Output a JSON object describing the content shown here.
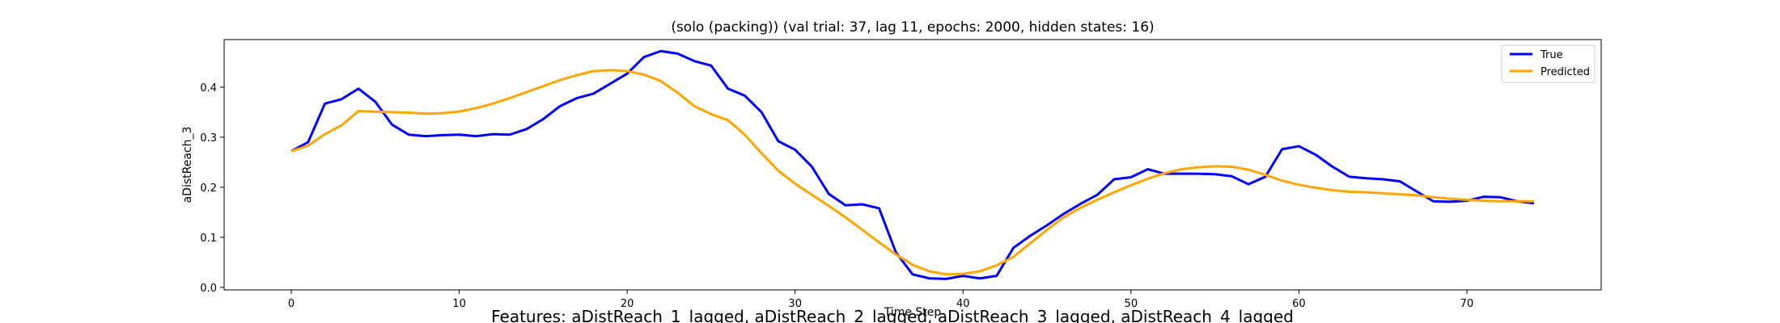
{
  "chart_data": {
    "type": "line",
    "title": "(solo (packing)) (val trial: 37, lag 11, epochs: 2000, hidden states: 16)",
    "xlabel": "Time Step",
    "ylabel": "aDistReach_3",
    "footer": "Features: aDistReach_1_lagged, aDistReach_2_lagged, aDistReach_3_lagged, aDistReach_4_lagged",
    "xlim": [
      -4,
      78
    ],
    "ylim": [
      -0.005,
      0.495
    ],
    "xticks": [
      0,
      10,
      20,
      30,
      40,
      50,
      60,
      70
    ],
    "yticks": [
      0.0,
      0.1,
      0.2,
      0.3,
      0.4
    ],
    "ytick_labels": [
      "0.0",
      "0.1",
      "0.2",
      "0.3",
      "0.4"
    ],
    "legend_position": "top-right",
    "series": [
      {
        "name": "True",
        "color": "#0000ff",
        "values": [
          0.272,
          0.29,
          0.367,
          0.376,
          0.397,
          0.371,
          0.325,
          0.305,
          0.302,
          0.304,
          0.305,
          0.302,
          0.306,
          0.305,
          0.316,
          0.336,
          0.362,
          0.378,
          0.387,
          0.407,
          0.427,
          0.46,
          0.472,
          0.467,
          0.452,
          0.443,
          0.397,
          0.383,
          0.35,
          0.292,
          0.275,
          0.241,
          0.187,
          0.164,
          0.166,
          0.158,
          0.07,
          0.026,
          0.018,
          0.017,
          0.023,
          0.018,
          0.023,
          0.079,
          0.103,
          0.124,
          0.147,
          0.167,
          0.185,
          0.216,
          0.22,
          0.236,
          0.227,
          0.227,
          0.227,
          0.226,
          0.222,
          0.206,
          0.221,
          0.276,
          0.282,
          0.265,
          0.241,
          0.221,
          0.218,
          0.216,
          0.212,
          0.192,
          0.172,
          0.171,
          0.173,
          0.181,
          0.18,
          0.172,
          0.168
        ]
      },
      {
        "name": "Predicted",
        "color": "#ffa500",
        "values": [
          0.272,
          0.283,
          0.306,
          0.324,
          0.352,
          0.351,
          0.35,
          0.349,
          0.347,
          0.348,
          0.351,
          0.358,
          0.367,
          0.378,
          0.39,
          0.402,
          0.414,
          0.424,
          0.432,
          0.434,
          0.432,
          0.425,
          0.412,
          0.389,
          0.362,
          0.346,
          0.334,
          0.305,
          0.268,
          0.233,
          0.207,
          0.185,
          0.163,
          0.14,
          0.115,
          0.09,
          0.066,
          0.045,
          0.032,
          0.026,
          0.027,
          0.032,
          0.044,
          0.061,
          0.088,
          0.115,
          0.14,
          0.159,
          0.175,
          0.19,
          0.204,
          0.217,
          0.228,
          0.236,
          0.24,
          0.242,
          0.241,
          0.235,
          0.225,
          0.213,
          0.205,
          0.199,
          0.194,
          0.191,
          0.19,
          0.188,
          0.186,
          0.184,
          0.18,
          0.177,
          0.175,
          0.173,
          0.172,
          0.172,
          0.172
        ]
      }
    ]
  }
}
